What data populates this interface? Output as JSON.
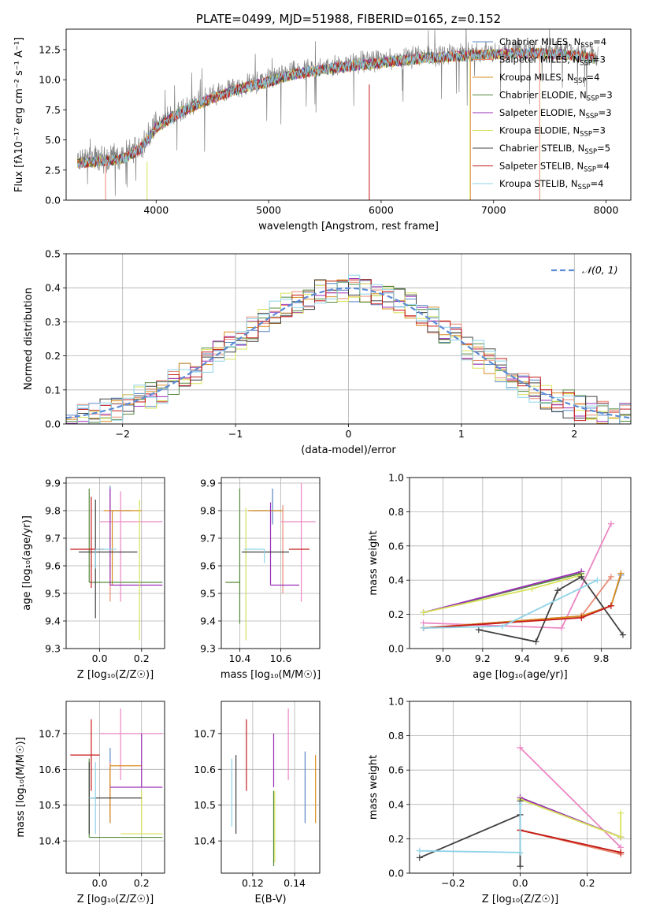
{
  "chart_data": [
    {
      "id": "spectrum",
      "type": "line",
      "title": "PLATE=0499, MJD=51988, FIBERID=0165, z=0.152",
      "xlabel": "wavelength [Angstrom, rest frame]",
      "ylabel": "Flux [fλ10⁻¹⁷ erg cm⁻² s⁻¹ A⁻¹]",
      "xlim": [
        3200,
        8220
      ],
      "ylim": [
        0,
        14.2
      ],
      "xticks": [
        4000,
        5000,
        6000,
        7000,
        8000
      ],
      "yticks": [
        0.0,
        2.5,
        5.0,
        7.5,
        10.0,
        12.5
      ],
      "data_color": "#808080",
      "continuum_knots_x": [
        3300,
        3500,
        3700,
        3850,
        4000,
        4200,
        4400,
        4600,
        4800,
        5000,
        5200,
        5400,
        5600,
        5800,
        6000,
        6200,
        6400,
        6600,
        6800,
        7000,
        7200,
        7400,
        7600,
        7800,
        7930
      ],
      "continuum_knots_y": [
        3.3,
        3.4,
        3.6,
        4.4,
        6.2,
        7.4,
        8.3,
        9.0,
        9.6,
        10.0,
        10.6,
        10.9,
        11.2,
        11.4,
        11.6,
        11.8,
        12.0,
        12.1,
        12.2,
        12.3,
        12.4,
        12.4,
        12.3,
        12.1,
        11.9
      ],
      "legend_position": "upper right",
      "series": [
        {
          "name": "Chabrier MILES, N_SSP=4",
          "color": "#5a87c6"
        },
        {
          "name": "Salpeter MILES, N_SSP=3",
          "color": "#e98a74"
        },
        {
          "name": "Kroupa MILES, N_SSP=4",
          "color": "#d98c1e"
        },
        {
          "name": "Chabrier ELODIE, N_SSP=3",
          "color": "#548a3c"
        },
        {
          "name": "Salpeter ELODIE, N_SSP=3",
          "color": "#9b2fb7"
        },
        {
          "name": "Kroupa ELODIE, N_SSP=3",
          "color": "#d7e25a"
        },
        {
          "name": "Chabrier STELIB, N_SSP=5",
          "color": "#404040"
        },
        {
          "name": "Salpeter STELIB, N_SSP=4",
          "color": "#c51a1a"
        },
        {
          "name": "Kroupa STELIB, N_SSP=4",
          "color": "#8ed3e8"
        }
      ]
    },
    {
      "id": "residuals",
      "type": "line",
      "xlabel": "(data-model)/error",
      "ylabel": "Normed distribution",
      "xlim": [
        -2.5,
        2.5
      ],
      "ylim": [
        0,
        0.5
      ],
      "xticks": [
        -2,
        -1,
        0,
        1,
        2
      ],
      "yticks": [
        0.0,
        0.1,
        0.2,
        0.3,
        0.4,
        0.5
      ],
      "grid": true,
      "legend_position": "upper right",
      "reference": {
        "name": "𝒩(0, 1)",
        "color": "#5b8bd5",
        "mean": 0,
        "sigma": 1
      }
    },
    {
      "id": "age-vs-Z",
      "type": "scatter",
      "xlabel": "Z [log₁₀(Z/Z☉)]",
      "ylabel": "age  [log₁₀(age/yr)]",
      "xlim": [
        -0.16,
        0.31
      ],
      "ylim": [
        9.3,
        9.92
      ],
      "xticks": [
        0.0,
        0.2
      ],
      "yticks": [
        9.3,
        9.4,
        9.5,
        9.6,
        9.7,
        9.8,
        9.9
      ],
      "grid": true,
      "points": [
        {
          "color": "#5a87c6",
          "x": 0.05,
          "xerr": [
            0.0,
            0.1
          ],
          "y": 9.8,
          "yerr": [
            0.0,
            0.09
          ]
        },
        {
          "color": "#e98a74",
          "x": 0.05,
          "xerr": [
            0.0,
            0.0
          ],
          "y": 9.7,
          "yerr": [
            0.23,
            0.17
          ]
        },
        {
          "color": "#ec86c3",
          "x": 0.1,
          "xerr": [
            0.1,
            0.2
          ],
          "y": 9.76,
          "yerr": [
            0.29,
            0.11
          ]
        },
        {
          "color": "#d98c1e",
          "x": 0.06,
          "xerr": [
            0.04,
            0.14
          ],
          "y": 9.8,
          "yerr": [
            0.27,
            0.0
          ]
        },
        {
          "color": "#548a3c",
          "x": -0.05,
          "xerr": [
            0.0,
            0.35
          ],
          "y": 9.54,
          "yerr": [
            0.0,
            0.34
          ]
        },
        {
          "color": "#9b2fb7",
          "x": 0.05,
          "xerr": [
            0.0,
            0.25
          ],
          "y": 9.53,
          "yerr": [
            0.0,
            0.35
          ]
        },
        {
          "color": "#d7e25a",
          "x": 0.19,
          "xerr": [
            0.0,
            0.0
          ],
          "y": 9.54,
          "yerr": [
            0.21,
            0.3
          ]
        },
        {
          "color": "#404040",
          "x": -0.02,
          "xerr": [
            0.08,
            0.2
          ],
          "y": 9.65,
          "yerr": [
            0.24,
            0.19
          ]
        },
        {
          "color": "#c51a1a",
          "x": -0.04,
          "xerr": [
            0.1,
            0.06
          ],
          "y": 9.66,
          "yerr": [
            0.14,
            0.19
          ]
        },
        {
          "color": "#8ed3e8",
          "x": -0.02,
          "xerr": [
            0.0,
            0.1
          ],
          "y": 9.66,
          "yerr": [
            0.07,
            0.0
          ]
        }
      ]
    },
    {
      "id": "age-vs-mass",
      "type": "scatter",
      "xlabel": "mass [log₁₀(M/M☉)]",
      "ylabel": "",
      "xlim": [
        10.31,
        10.79
      ],
      "ylim": [
        9.3,
        9.92
      ],
      "xticks": [
        10.4,
        10.6
      ],
      "yticks": [
        9.3,
        9.4,
        9.5,
        9.6,
        9.7,
        9.8,
        9.9
      ],
      "grid": true,
      "points": [
        {
          "color": "#5a87c6",
          "x": 10.56,
          "xerr": [
            0.1,
            0.04
          ],
          "y": 9.8,
          "yerr": [
            0.05,
            0.08
          ]
        },
        {
          "color": "#e98a74",
          "x": 10.61,
          "xerr": [
            0.0,
            0.0
          ],
          "y": 9.7,
          "yerr": [
            0.2,
            0.12
          ]
        },
        {
          "color": "#ec86c3",
          "x": 10.7,
          "xerr": [
            0.1,
            0.07
          ],
          "y": 9.76,
          "yerr": [
            0.29,
            0.14
          ]
        },
        {
          "color": "#d98c1e",
          "x": 10.61,
          "xerr": [
            0.17,
            0.0
          ],
          "y": 9.8,
          "yerr": [
            0.0,
            0.0
          ]
        },
        {
          "color": "#548a3c",
          "x": 10.4,
          "xerr": [
            0.07,
            0.0
          ],
          "y": 9.54,
          "yerr": [
            0.15,
            0.34
          ]
        },
        {
          "color": "#9b2fb7",
          "x": 10.55,
          "xerr": [
            0.0,
            0.14
          ],
          "y": 9.53,
          "yerr": [
            0.0,
            0.3
          ]
        },
        {
          "color": "#d7e25a",
          "x": 10.43,
          "xerr": [
            0.0,
            0.0
          ],
          "y": 9.55,
          "yerr": [
            0.22,
            0.26
          ]
        },
        {
          "color": "#404040",
          "x": 10.52,
          "xerr": [
            0.11,
            0.12
          ],
          "y": 9.65,
          "yerr": [
            0.0,
            0.0
          ]
        },
        {
          "color": "#c51a1a",
          "x": 10.64,
          "xerr": [
            0.0,
            0.1
          ],
          "y": 9.66,
          "yerr": [
            0.0,
            0.0
          ]
        },
        {
          "color": "#8ed3e8",
          "x": 10.52,
          "xerr": [
            0.1,
            0.0
          ],
          "y": 9.66,
          "yerr": [
            0.05,
            0.0
          ]
        }
      ]
    },
    {
      "id": "massweight-vs-age",
      "type": "line",
      "xlabel": "age  [log₁₀(age/yr)]",
      "ylabel": "mass weight",
      "xlim": [
        8.83,
        9.95
      ],
      "ylim": [
        0,
        1
      ],
      "xticks": [
        9.0,
        9.2,
        9.4,
        9.6,
        9.8
      ],
      "yticks": [
        0.0,
        0.2,
        0.4,
        0.6,
        0.8,
        1.0
      ],
      "grid": true,
      "series": [
        {
          "color": "#5a87c6",
          "x": [
            8.9,
            9.7,
            9.85,
            9.9
          ],
          "y": [
            0.12,
            0.19,
            0.25,
            0.43
          ]
        },
        {
          "color": "#e98a74",
          "x": [
            8.9,
            9.7,
            9.85
          ],
          "y": [
            0.12,
            0.19,
            0.42
          ]
        },
        {
          "color": "#ec86c3",
          "x": [
            8.9,
            9.6,
            9.85
          ],
          "y": [
            0.15,
            0.12,
            0.73
          ]
        },
        {
          "color": "#d98c1e",
          "x": [
            8.9,
            9.7,
            9.85,
            9.9
          ],
          "y": [
            0.12,
            0.19,
            0.25,
            0.44
          ]
        },
        {
          "color": "#548a3c",
          "x": [
            8.9,
            9.7
          ],
          "y": [
            0.21,
            0.44
          ]
        },
        {
          "color": "#9b2fb7",
          "x": [
            8.9,
            9.7
          ],
          "y": [
            0.21,
            0.45
          ]
        },
        {
          "color": "#d7e25a",
          "x": [
            8.9,
            9.45,
            9.7
          ],
          "y": [
            0.21,
            0.35,
            0.43
          ]
        },
        {
          "color": "#404040",
          "x": [
            9.18,
            9.47,
            9.58,
            9.7,
            9.91
          ],
          "y": [
            0.11,
            0.04,
            0.34,
            0.42,
            0.08
          ]
        },
        {
          "color": "#c51a1a",
          "x": [
            8.9,
            9.7,
            9.85
          ],
          "y": [
            0.12,
            0.18,
            0.25
          ]
        },
        {
          "color": "#8ed3e8",
          "x": [
            8.9,
            9.3,
            9.78
          ],
          "y": [
            0.12,
            0.13,
            0.4
          ]
        }
      ]
    },
    {
      "id": "mass-vs-Z",
      "type": "scatter",
      "xlabel": "Z [log₁₀(Z/Z☉)]",
      "ylabel": "mass [log₁₀(M/M☉)]",
      "xlim": [
        -0.16,
        0.31
      ],
      "ylim": [
        10.31,
        10.79
      ],
      "xticks": [
        0.0,
        0.2
      ],
      "yticks": [
        10.4,
        10.5,
        10.6,
        10.7
      ],
      "grid": true,
      "points": [
        {
          "color": "#5a87c6",
          "x": 0.05,
          "xerr": [
            0.0,
            0.0
          ],
          "y": 10.61,
          "yerr": [
            0.16,
            0.05
          ]
        },
        {
          "color": "#e98a74",
          "x": 0.05,
          "xerr": [
            0.0,
            0.0
          ],
          "y": 10.6,
          "yerr": [
            0.13,
            0.02
          ]
        },
        {
          "color": "#ec86c3",
          "x": 0.1,
          "xerr": [
            0.1,
            0.2
          ],
          "y": 10.7,
          "yerr": [
            0.13,
            0.07
          ]
        },
        {
          "color": "#d98c1e",
          "x": 0.05,
          "xerr": [
            0.0,
            0.15
          ],
          "y": 10.61,
          "yerr": [
            0.16,
            0.0
          ]
        },
        {
          "color": "#548a3c",
          "x": -0.05,
          "xerr": [
            0.0,
            0.35
          ],
          "y": 10.41,
          "yerr": [
            0.0,
            0.22
          ]
        },
        {
          "color": "#9b2fb7",
          "x": 0.2,
          "xerr": [
            0.15,
            0.1
          ],
          "y": 10.55,
          "yerr": [
            0.0,
            0.15
          ]
        },
        {
          "color": "#d7e25a",
          "x": 0.2,
          "xerr": [
            0.1,
            0.1
          ],
          "y": 10.42,
          "yerr": [
            0.0,
            0.12
          ]
        },
        {
          "color": "#404040",
          "x": -0.05,
          "xerr": [
            0.0,
            0.25
          ],
          "y": 10.52,
          "yerr": [
            0.1,
            0.1
          ]
        },
        {
          "color": "#c51a1a",
          "x": -0.04,
          "xerr": [
            0.1,
            0.04
          ],
          "y": 10.64,
          "yerr": [
            0.1,
            0.1
          ]
        },
        {
          "color": "#8ed3e8",
          "x": -0.02,
          "xerr": [
            0.03,
            0.0
          ],
          "y": 10.52,
          "yerr": [
            0.1,
            0.1
          ]
        }
      ]
    },
    {
      "id": "mass-vs-EBV",
      "type": "scatter",
      "xlabel": "E(B-V)",
      "ylabel": "",
      "xlim": [
        0.105,
        0.152
      ],
      "ylim": [
        10.31,
        10.79
      ],
      "xticks": [
        0.12,
        0.14
      ],
      "yticks": [
        10.4,
        10.5,
        10.6,
        10.7
      ],
      "grid": true,
      "points": [
        {
          "color": "#8ed3e8",
          "x": 0.11,
          "y": 10.53,
          "yerr": [
            0.09,
            0.1
          ]
        },
        {
          "color": "#404040",
          "x": 0.112,
          "y": 10.53,
          "yerr": [
            0.11,
            0.11
          ]
        },
        {
          "color": "#c51a1a",
          "x": 0.117,
          "y": 10.64,
          "yerr": [
            0.1,
            0.1
          ]
        },
        {
          "color": "#548a3c",
          "x": 0.13,
          "y": 10.44,
          "yerr": [
            0.11,
            0.1
          ]
        },
        {
          "color": "#d7e25a",
          "x": 0.1305,
          "y": 10.44,
          "yerr": [
            0.1,
            0.1
          ]
        },
        {
          "color": "#9b2fb7",
          "x": 0.13,
          "y": 10.55,
          "yerr": [
            0.0,
            0.15
          ]
        },
        {
          "color": "#ec86c3",
          "x": 0.137,
          "y": 10.67,
          "yerr": [
            0.1,
            0.1
          ]
        },
        {
          "color": "#5a87c6",
          "x": 0.145,
          "y": 10.55,
          "yerr": [
            0.1,
            0.1
          ]
        },
        {
          "color": "#d98c1e",
          "x": 0.15,
          "y": 10.54,
          "yerr": [
            0.09,
            0.1
          ]
        }
      ]
    },
    {
      "id": "massweight-vs-Z",
      "type": "line",
      "xlabel": "Z [log₁₀(Z/Z☉)]",
      "ylabel": "mass weight",
      "xlim": [
        -0.33,
        0.33
      ],
      "ylim": [
        0,
        1
      ],
      "xticks": [
        -0.2,
        0.0,
        0.2
      ],
      "yticks": [
        0.0,
        0.2,
        0.4,
        0.6,
        0.8,
        1.0
      ],
      "grid": true,
      "series": [
        {
          "color": "#5a87c6",
          "x": [
            0.0,
            0.3
          ],
          "y": [
            0.25,
            0.12
          ]
        },
        {
          "color": "#e98a74",
          "x": [
            0.0,
            0.3
          ],
          "y": [
            0.25,
            0.11
          ]
        },
        {
          "color": "#ec86c3",
          "x": [
            0.0,
            0.3
          ],
          "y": [
            0.73,
            0.15
          ]
        },
        {
          "color": "#d98c1e",
          "x": [
            0.0,
            0.3
          ],
          "y": [
            0.25,
            0.12
          ]
        },
        {
          "color": "#548a3c",
          "x": [
            0.0,
            0.3
          ],
          "y": [
            0.44,
            0.21
          ]
        },
        {
          "color": "#9b2fb7",
          "x": [
            0.0,
            0.3
          ],
          "y": [
            0.44,
            0.21
          ]
        },
        {
          "color": "#d7e25a",
          "x": [
            0.0,
            0.0,
            0.3,
            0.3
          ],
          "y": [
            0.42,
            0.43,
            0.21,
            0.35
          ]
        },
        {
          "color": "#404040",
          "x": [
            -0.3,
            0.0,
            0.0,
            0.0
          ],
          "y": [
            0.09,
            0.34,
            0.42,
            0.04
          ]
        },
        {
          "color": "#c51a1a",
          "x": [
            0.0,
            0.3
          ],
          "y": [
            0.25,
            0.12
          ]
        },
        {
          "color": "#8ed3e8",
          "x": [
            -0.3,
            0.0,
            0.0
          ],
          "y": [
            0.13,
            0.12,
            0.4
          ]
        }
      ]
    }
  ]
}
